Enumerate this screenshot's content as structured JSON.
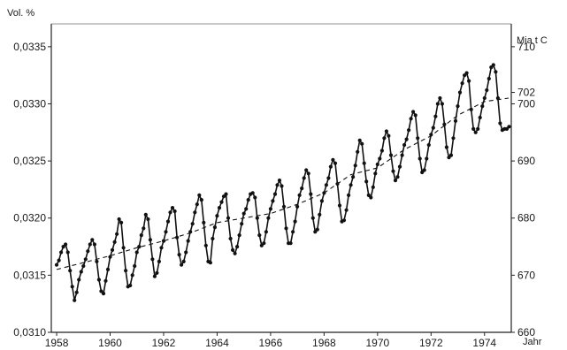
{
  "chart_data": {
    "type": "line",
    "left_axis_label": "Vol. %",
    "right_axis_label": "Mia t C",
    "x_axis_label": "Jahr",
    "xlim": [
      1957.8,
      1975.0
    ],
    "ylim": [
      0.031,
      0.0337
    ],
    "right_ylim": [
      660,
      714
    ],
    "x_ticks": [
      "1958",
      "1960",
      "1962",
      "1964",
      "1966",
      "1968",
      "1970",
      "1972",
      "1974"
    ],
    "y_ticks": [
      "0,0310",
      "0,0315",
      "0,0320",
      "0,0325",
      "0,0330",
      "0,0335"
    ],
    "right_ticks": [
      "660",
      "670",
      "680",
      "690",
      "700",
      "702",
      "710"
    ],
    "line_color": "#111111",
    "series": [
      {
        "values_note": "monthly concentration in Vol. %",
        "x": [
          1958.0,
          1958.083,
          1958.167,
          1958.25,
          1958.333,
          1958.417,
          1958.5,
          1958.583,
          1958.667,
          1958.75,
          1958.833,
          1958.917,
          1959.0,
          1959.083,
          1959.167,
          1959.25,
          1959.333,
          1959.417,
          1959.5,
          1959.583,
          1959.667,
          1959.75,
          1959.833,
          1959.917,
          1960.0,
          1960.083,
          1960.167,
          1960.25,
          1960.333,
          1960.417,
          1960.5,
          1960.583,
          1960.667,
          1960.75,
          1960.833,
          1960.917,
          1961.0,
          1961.083,
          1961.167,
          1961.25,
          1961.333,
          1961.417,
          1961.5,
          1961.583,
          1961.667,
          1961.75,
          1961.833,
          1961.917,
          1962.0,
          1962.083,
          1962.167,
          1962.25,
          1962.333,
          1962.417,
          1962.5,
          1962.583,
          1962.667,
          1962.75,
          1962.833,
          1962.917,
          1963.0,
          1963.083,
          1963.167,
          1963.25,
          1963.333,
          1963.417,
          1963.5,
          1963.583,
          1963.667,
          1963.75,
          1963.833,
          1963.917,
          1964.0,
          1964.083,
          1964.167,
          1964.25,
          1964.333,
          1964.417,
          1964.5,
          1964.583,
          1964.667,
          1964.75,
          1964.833,
          1964.917,
          1965.0,
          1965.083,
          1965.167,
          1965.25,
          1965.333,
          1965.417,
          1965.5,
          1965.583,
          1965.667,
          1965.75,
          1965.833,
          1965.917,
          1966.0,
          1966.083,
          1966.167,
          1966.25,
          1966.333,
          1966.417,
          1966.5,
          1966.583,
          1966.667,
          1966.75,
          1966.833,
          1966.917,
          1967.0,
          1967.083,
          1967.167,
          1967.25,
          1967.333,
          1967.417,
          1967.5,
          1967.583,
          1967.667,
          1967.75,
          1967.833,
          1967.917,
          1968.0,
          1968.083,
          1968.167,
          1968.25,
          1968.333,
          1968.417,
          1968.5,
          1968.583,
          1968.667,
          1968.75,
          1968.833,
          1968.917,
          1969.0,
          1969.083,
          1969.167,
          1969.25,
          1969.333,
          1969.417,
          1969.5,
          1969.583,
          1969.667,
          1969.75,
          1969.833,
          1969.917,
          1970.0,
          1970.083,
          1970.167,
          1970.25,
          1970.333,
          1970.417,
          1970.5,
          1970.583,
          1970.667,
          1970.75,
          1970.833,
          1970.917,
          1971.0,
          1971.083,
          1971.167,
          1971.25,
          1971.333,
          1971.417,
          1971.5,
          1971.583,
          1971.667,
          1971.75,
          1971.833,
          1971.917,
          1972.0,
          1972.083,
          1972.167,
          1972.25,
          1972.333,
          1972.417,
          1972.5,
          1972.583,
          1972.667,
          1972.75,
          1972.833,
          1972.917,
          1973.0,
          1973.083,
          1973.167,
          1973.25,
          1973.333,
          1973.417,
          1973.5,
          1973.583,
          1973.667,
          1973.75,
          1973.833,
          1973.917,
          1974.0,
          1974.083,
          1974.167,
          1974.25,
          1974.333,
          1974.417,
          1974.5,
          1974.583,
          1974.667,
          1974.75,
          1974.833,
          1974.917
        ],
        "values": [
          0.03159,
          0.03163,
          0.0317,
          0.03175,
          0.03177,
          0.0317,
          0.03154,
          0.0314,
          0.03128,
          0.03135,
          0.03146,
          0.03153,
          0.03158,
          0.03164,
          0.03171,
          0.03177,
          0.03181,
          0.03177,
          0.03162,
          0.03146,
          0.03136,
          0.03134,
          0.03145,
          0.03155,
          0.03166,
          0.03172,
          0.03179,
          0.03186,
          0.03199,
          0.03196,
          0.03174,
          0.03154,
          0.0314,
          0.03141,
          0.0315,
          0.03158,
          0.0317,
          0.03175,
          0.03185,
          0.03191,
          0.03203,
          0.03199,
          0.03181,
          0.03164,
          0.03149,
          0.03152,
          0.03162,
          0.03174,
          0.0318,
          0.03188,
          0.03197,
          0.03205,
          0.03209,
          0.03206,
          0.03183,
          0.03168,
          0.03159,
          0.03162,
          0.0317,
          0.0318,
          0.03188,
          0.03195,
          0.03205,
          0.03212,
          0.0322,
          0.03216,
          0.03196,
          0.03176,
          0.03162,
          0.03161,
          0.03182,
          0.03192,
          0.03202,
          0.03209,
          0.03214,
          0.03219,
          0.03221,
          0.032,
          0.03182,
          0.03172,
          0.03169,
          0.03175,
          0.03185,
          0.03195,
          0.03204,
          0.03208,
          0.03216,
          0.03221,
          0.03222,
          0.03218,
          0.032,
          0.03185,
          0.03176,
          0.03178,
          0.03188,
          0.032,
          0.03208,
          0.03215,
          0.03221,
          0.03229,
          0.03233,
          0.03228,
          0.0321,
          0.03191,
          0.03178,
          0.03178,
          0.03188,
          0.03197,
          0.0321,
          0.0322,
          0.03226,
          0.03235,
          0.03242,
          0.03239,
          0.03221,
          0.032,
          0.03188,
          0.0319,
          0.03203,
          0.03215,
          0.03222,
          0.03229,
          0.03235,
          0.03245,
          0.03251,
          0.03248,
          0.0323,
          0.03211,
          0.03197,
          0.03198,
          0.03207,
          0.0322,
          0.03229,
          0.03236,
          0.03246,
          0.03258,
          0.03268,
          0.03265,
          0.03248,
          0.03232,
          0.0322,
          0.03218,
          0.03227,
          0.03239,
          0.03247,
          0.03252,
          0.03259,
          0.0327,
          0.03276,
          0.03272,
          0.03255,
          0.03241,
          0.03233,
          0.03236,
          0.03245,
          0.03255,
          0.03264,
          0.03269,
          0.03277,
          0.03287,
          0.03293,
          0.0329,
          0.0327,
          0.03252,
          0.0324,
          0.03242,
          0.03252,
          0.03264,
          0.03273,
          0.03279,
          0.03289,
          0.033,
          0.03305,
          0.033,
          0.03282,
          0.03262,
          0.03253,
          0.03255,
          0.0327,
          0.03285,
          0.03298,
          0.0331,
          0.03318,
          0.03325,
          0.03327,
          0.0332,
          0.03295,
          0.03278,
          0.03275,
          0.03278,
          0.03288,
          0.03298,
          0.03305,
          0.03312,
          0.03322,
          0.03332,
          0.03334,
          0.03328,
          0.03305,
          0.03283,
          0.03277,
          0.03278,
          0.03278,
          0.0328
        ]
      },
      {
        "values_note": "dashed annual mean trend",
        "x": [
          1958.0,
          1959.0,
          1960.0,
          1961.0,
          1962.0,
          1963.0,
          1964.0,
          1965.0,
          1966.0,
          1967.0,
          1968.0,
          1969.0,
          1970.0,
          1971.0,
          1972.0,
          1973.0,
          1974.0,
          1974.9
        ],
        "values": [
          0.03155,
          0.03161,
          0.03167,
          0.03174,
          0.0318,
          0.03187,
          0.03196,
          0.032,
          0.03204,
          0.03212,
          0.03222,
          0.03238,
          0.03244,
          0.0326,
          0.03272,
          0.0329,
          0.03302,
          0.03305
        ]
      }
    ]
  }
}
